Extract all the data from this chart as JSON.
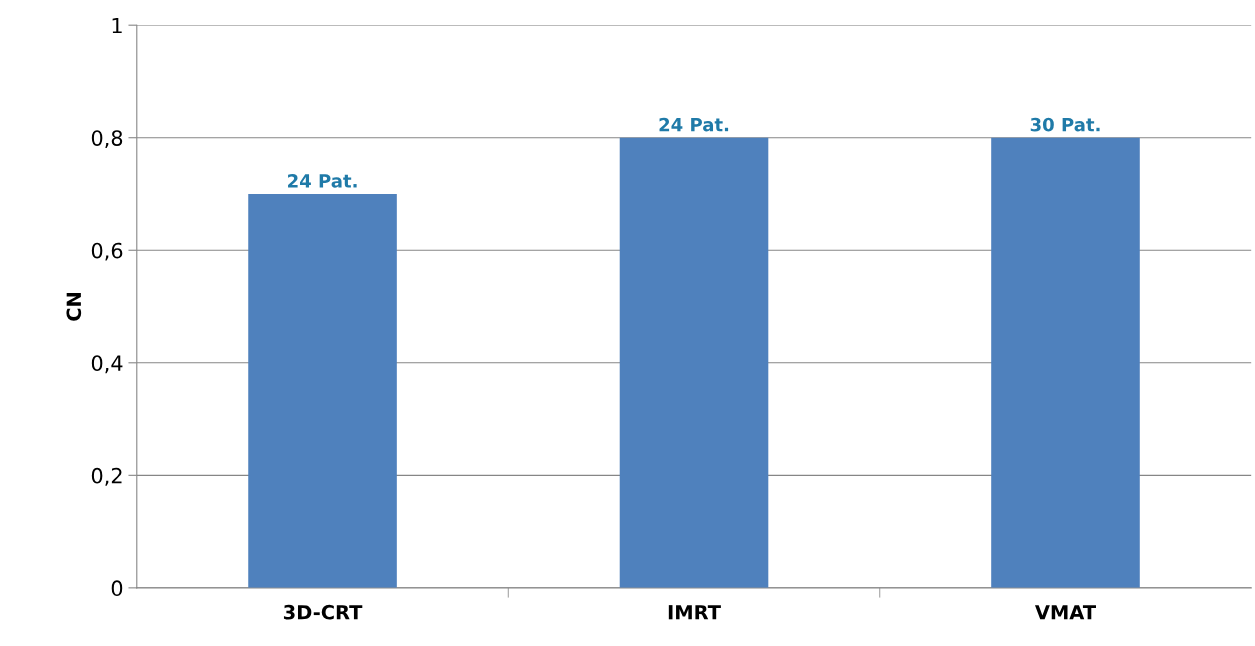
{
  "chart_data": {
    "type": "bar",
    "ylabel": "CN",
    "categories": [
      "3D-CRT",
      "IMRT",
      "VMAT"
    ],
    "series": [
      {
        "color": "#4f81bd",
        "values": [
          0.7,
          0.8,
          0.8
        ]
      }
    ],
    "annotations": [
      {
        "text": "24 Pat.",
        "x": "3D-CRT",
        "y": 0.7
      },
      {
        "text": "24 Pat.",
        "x": "IMRT",
        "y": 0.8
      },
      {
        "text": "30 Pat.",
        "x": "VMAT",
        "y": 0.8
      }
    ],
    "ylim": [
      0,
      1
    ],
    "yticks": [
      0,
      {
        "value": 0.2,
        "label": "0,2"
      },
      {
        "value": 0.4,
        "label": "0,4"
      },
      {
        "value": 0.6,
        "label": "0,6"
      },
      {
        "value": 0.8,
        "label": "0,8"
      },
      1
    ],
    "grid": "y",
    "legend": false
  }
}
